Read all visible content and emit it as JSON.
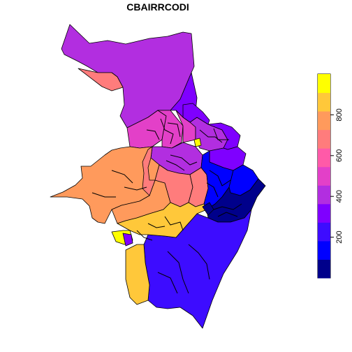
{
  "title": "CBAIRRCODI",
  "colors": {
    "c0": "#00008b",
    "c100": "#0000ff",
    "c200": "#3d0cff",
    "c300": "#7f00ff",
    "c400": "#b22ee0",
    "c500": "#e340c8",
    "c600": "#ff5aa8",
    "c700": "#ff7c7c",
    "c800": "#ff9a5c",
    "c900": "#ffc83a",
    "c1000": "#ffff00"
  },
  "legend": {
    "ticks": [
      "200",
      "400",
      "600",
      "800"
    ],
    "range": [
      0,
      1000
    ],
    "tick_values": [
      200,
      400,
      600,
      800
    ]
  }
}
